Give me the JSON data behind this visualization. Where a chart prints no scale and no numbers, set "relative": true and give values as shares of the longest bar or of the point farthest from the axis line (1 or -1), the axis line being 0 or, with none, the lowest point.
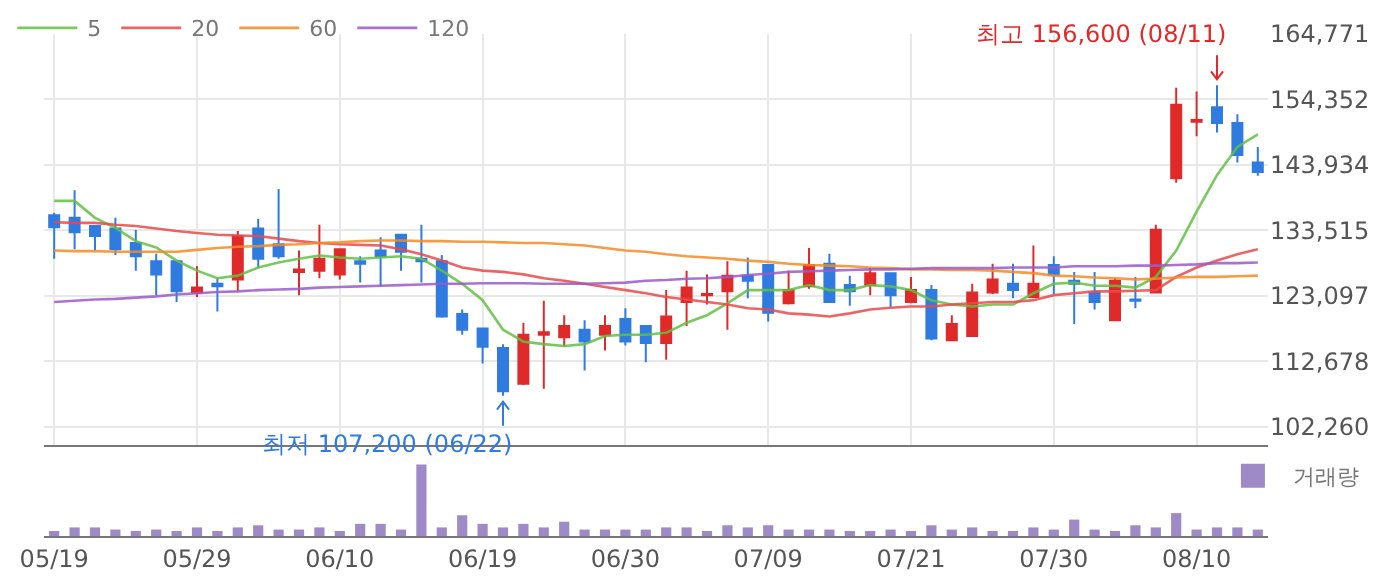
{
  "chart_data": [
    {
      "type": "candlestick",
      "categories": [
        "05/19",
        null,
        null,
        null,
        null,
        null,
        null,
        "05/29",
        null,
        null,
        null,
        null,
        null,
        null,
        "06/10",
        null,
        null,
        null,
        null,
        null,
        null,
        "06/19",
        null,
        null,
        null,
        null,
        null,
        null,
        "06/30",
        null,
        null,
        null,
        null,
        null,
        null,
        "07/09",
        null,
        null,
        null,
        null,
        null,
        null,
        "07/21",
        null,
        null,
        null,
        null,
        null,
        null,
        "07/30",
        null,
        null,
        null,
        null,
        null,
        null,
        "08/10",
        null,
        null,
        null
      ],
      "ohlc": [
        [
          135900,
          136300,
          129000,
          134000
        ],
        [
          135500,
          139900,
          130500,
          133200
        ],
        [
          134200,
          134200,
          130300,
          132600
        ],
        [
          133800,
          135500,
          129600,
          130500
        ],
        [
          131500,
          133600,
          127100,
          129400
        ],
        [
          128600,
          129800,
          123200,
          126500
        ],
        [
          128600,
          128600,
          122100,
          123800
        ],
        [
          123600,
          127800,
          122900,
          124400
        ],
        [
          125000,
          125900,
          120600,
          124600
        ],
        [
          125700,
          133400,
          123800,
          132600
        ],
        [
          133800,
          135300,
          127500,
          129000
        ],
        [
          131300,
          140100,
          129000,
          129400
        ],
        [
          126900,
          130300,
          123200,
          127300
        ],
        [
          127100,
          134400,
          125900,
          129000
        ],
        [
          126500,
          130500,
          125700,
          130500
        ],
        [
          128600,
          129400,
          125200,
          128200
        ],
        [
          130300,
          132400,
          124600,
          129400
        ],
        [
          132800,
          132800,
          127100,
          130100
        ],
        [
          129000,
          134400,
          125200,
          128600
        ],
        [
          128600,
          129600,
          119600,
          119800
        ],
        [
          120200,
          120900,
          116900,
          117700
        ],
        [
          117900,
          117900,
          112300,
          115000
        ],
        [
          114800,
          115400,
          107200,
          107900
        ],
        [
          109100,
          118800,
          108900,
          116900
        ],
        [
          116900,
          122300,
          108300,
          117300
        ],
        [
          116500,
          120000,
          115000,
          118300
        ],
        [
          117700,
          119200,
          111200,
          115800
        ],
        [
          116900,
          120000,
          114400,
          118300
        ],
        [
          119400,
          121100,
          115200,
          115800
        ],
        [
          118300,
          118300,
          112500,
          115600
        ],
        [
          115600,
          124000,
          112900,
          119800
        ],
        [
          122100,
          127100,
          118300,
          124400
        ],
        [
          123200,
          126500,
          121700,
          123400
        ],
        [
          123800,
          128600,
          117700,
          126300
        ],
        [
          126300,
          129200,
          122700,
          125500
        ],
        [
          128000,
          128000,
          119000,
          120400
        ],
        [
          121900,
          127100,
          121700,
          124000
        ],
        [
          124600,
          130700,
          124200,
          128000
        ],
        [
          128200,
          129800,
          122100,
          122100
        ],
        [
          124800,
          126300,
          121500,
          123800
        ],
        [
          124800,
          127500,
          123200,
          126700
        ],
        [
          126700,
          126700,
          121300,
          123200
        ],
        [
          122100,
          126100,
          121900,
          124000
        ],
        [
          124000,
          124800,
          116000,
          116300
        ],
        [
          116000,
          120000,
          116000,
          118600
        ],
        [
          116700,
          125000,
          116700,
          123600
        ],
        [
          123600,
          128200,
          123400,
          125700
        ],
        [
          125000,
          128200,
          122700,
          124000
        ],
        [
          122900,
          131100,
          122900,
          125000
        ],
        [
          128000,
          129400,
          123400,
          126500
        ],
        [
          125500,
          126900,
          118600,
          125000
        ],
        [
          123600,
          126900,
          120900,
          122100
        ],
        [
          119200,
          125900,
          119200,
          125500
        ],
        [
          122500,
          126100,
          121100,
          122300
        ],
        [
          123600,
          134400,
          123600,
          133600
        ],
        [
          141800,
          156200,
          141100,
          153500
        ],
        [
          150800,
          155600,
          148500,
          151100
        ],
        [
          153100,
          156600,
          149100,
          150600
        ],
        [
          150600,
          152000,
          144300,
          145500
        ],
        [
          144300,
          146800,
          142200,
          142800
        ]
      ],
      "colors": [
        "#2f7be0",
        "#2f7be0",
        "#2f7be0",
        "#2f7be0",
        "#2f7be0",
        "#2f7be0",
        "#2f7be0",
        "#e02a2a",
        "#2f7be0",
        "#e02a2a",
        "#2f7be0",
        "#2f7be0",
        "#e02a2a",
        "#e02a2a",
        "#e02a2a",
        "#2f7be0",
        "#2f7be0",
        "#2f7be0",
        "#2f7be0",
        "#2f7be0",
        "#2f7be0",
        "#2f7be0",
        "#2f7be0",
        "#e02a2a",
        "#e02a2a",
        "#e02a2a",
        "#2f7be0",
        "#e02a2a",
        "#2f7be0",
        "#2f7be0",
        "#e02a2a",
        "#e02a2a",
        "#e02a2a",
        "#e02a2a",
        "#2f7be0",
        "#2f7be0",
        "#e02a2a",
        "#e02a2a",
        "#2f7be0",
        "#2f7be0",
        "#e02a2a",
        "#2f7be0",
        "#e02a2a",
        "#2f7be0",
        "#e02a2a",
        "#e02a2a",
        "#e02a2a",
        "#2f7be0",
        "#e02a2a",
        "#2f7be0",
        "#2f7be0",
        "#2f7be0",
        "#e02a2a",
        "#2f7be0",
        "#e02a2a",
        "#e02a2a",
        "#e02a2a",
        "#2f7be0",
        "#2f7be0",
        "#2f7be0"
      ],
      "series": [
        {
          "name": "5",
          "type": "line",
          "color": "#62c044",
          "values": [
            138200,
            138200,
            135500,
            133900,
            131800,
            130800,
            128700,
            127100,
            125900,
            126300,
            127600,
            128400,
            129000,
            129500,
            129200,
            129000,
            129200,
            129400,
            129000,
            127100,
            125000,
            122400,
            117700,
            115800,
            115400,
            115100,
            115400,
            116700,
            116900,
            116900,
            117200,
            118800,
            120000,
            121900,
            124000,
            124000,
            124000,
            124800,
            124000,
            124000,
            124800,
            124600,
            124000,
            122400,
            121700,
            121400,
            121700,
            121700,
            123500,
            125000,
            125200,
            124700,
            124700,
            124400,
            126100,
            130300,
            136500,
            142300,
            146800,
            148800
          ]
        },
        {
          "name": "20",
          "type": "line",
          "color": "#e94a4a",
          "values": [
            134800,
            134700,
            134700,
            134400,
            134200,
            133800,
            133400,
            133100,
            132800,
            132700,
            132600,
            132200,
            131800,
            131500,
            131300,
            131200,
            131100,
            130500,
            129700,
            128700,
            127600,
            127100,
            126900,
            126500,
            125900,
            125500,
            125000,
            124500,
            124000,
            123500,
            122900,
            122500,
            122100,
            121700,
            121100,
            120900,
            120300,
            120100,
            119800,
            120300,
            120900,
            121200,
            121400,
            121400,
            121700,
            121900,
            122100,
            122100,
            122400,
            123200,
            123500,
            123800,
            123800,
            123900,
            124000,
            126100,
            127600,
            128700,
            129700,
            130500
          ]
        },
        {
          "name": "60",
          "type": "line",
          "color": "#f58b23",
          "values": [
            130300,
            130200,
            130200,
            130100,
            130100,
            130100,
            130100,
            130400,
            130700,
            130900,
            131000,
            131200,
            131300,
            131500,
            131600,
            131800,
            131900,
            131900,
            131800,
            131800,
            131700,
            131700,
            131600,
            131500,
            131500,
            131300,
            131100,
            130700,
            130300,
            130100,
            129700,
            129400,
            129200,
            129000,
            128700,
            128500,
            128200,
            128000,
            127900,
            127800,
            127600,
            127500,
            127300,
            127300,
            127200,
            127200,
            127100,
            126900,
            126700,
            126300,
            126200,
            126000,
            125900,
            125700,
            125800,
            126000,
            126100,
            126100,
            126200,
            126300
          ]
        },
        {
          "name": "120",
          "type": "line",
          "color": "#9b5bc9",
          "values": [
            122100,
            122300,
            122500,
            122600,
            122800,
            123000,
            123300,
            123500,
            123700,
            123800,
            124000,
            124100,
            124200,
            124400,
            124500,
            124600,
            124700,
            124800,
            124900,
            125000,
            125000,
            125100,
            125100,
            125100,
            125000,
            125000,
            125000,
            125100,
            125200,
            125500,
            125600,
            125800,
            125900,
            126100,
            126400,
            126600,
            126900,
            127000,
            127100,
            127200,
            127300,
            127300,
            127400,
            127500,
            127500,
            127500,
            127500,
            127600,
            127600,
            127600,
            127800,
            127800,
            127800,
            127900,
            127900,
            128000,
            128100,
            128300,
            128300,
            128400
          ]
        }
      ],
      "ylim": [
        99400,
        164771
      ],
      "yticks": [
        {
          "value": 102260,
          "label": "102,260"
        },
        {
          "value": 112678,
          "label": "112,678"
        },
        {
          "value": 123097,
          "label": "123,097"
        },
        {
          "value": 133515,
          "label": "133,515"
        },
        {
          "value": 143934,
          "label": "143,934"
        },
        {
          "value": 154352,
          "label": "154,352"
        },
        {
          "value": 164771,
          "label": "164,771"
        }
      ],
      "annotations": [
        "최고 156,600 (08/11)",
        "최저 107,200 (06/22)"
      ],
      "grid": true,
      "legend": "top left",
      "tick_labels": "y"
    },
    {
      "type": "bar",
      "relative": true,
      "categories": [
        "05/19",
        null,
        null,
        null,
        null,
        null,
        null,
        "05/29",
        null,
        null,
        null,
        null,
        null,
        null,
        "06/10",
        null,
        null,
        null,
        null,
        null,
        null,
        "06/19",
        null,
        null,
        null,
        null,
        null,
        null,
        "06/30",
        null,
        null,
        null,
        null,
        null,
        null,
        "07/09",
        null,
        null,
        null,
        null,
        null,
        null,
        "07/21",
        null,
        null,
        null,
        null,
        null,
        null,
        "07/30",
        null,
        null,
        null,
        null,
        null,
        null,
        "08/10",
        null,
        null,
        null
      ],
      "series": [
        {
          "name": "거래량",
          "color": "#9e8ac6",
          "values": [
            0.07,
            0.12,
            0.12,
            0.09,
            0.07,
            0.09,
            0.07,
            0.12,
            0.07,
            0.12,
            0.15,
            0.09,
            0.09,
            0.12,
            0.07,
            0.17,
            0.17,
            0.09,
            1,
            0.12,
            0.29,
            0.17,
            0.12,
            0.17,
            0.12,
            0.2,
            0.09,
            0.09,
            0.09,
            0.09,
            0.12,
            0.12,
            0.07,
            0.15,
            0.12,
            0.15,
            0.09,
            0.09,
            0.09,
            0.07,
            0.07,
            0.09,
            0.07,
            0.15,
            0.09,
            0.12,
            0.07,
            0.07,
            0.12,
            0.09,
            0.23,
            0.09,
            0.07,
            0.15,
            0.12,
            0.32,
            0.09,
            0.12,
            0.12,
            0.09
          ]
        }
      ],
      "legend": "top right",
      "tick_labels": "x"
    }
  ]
}
